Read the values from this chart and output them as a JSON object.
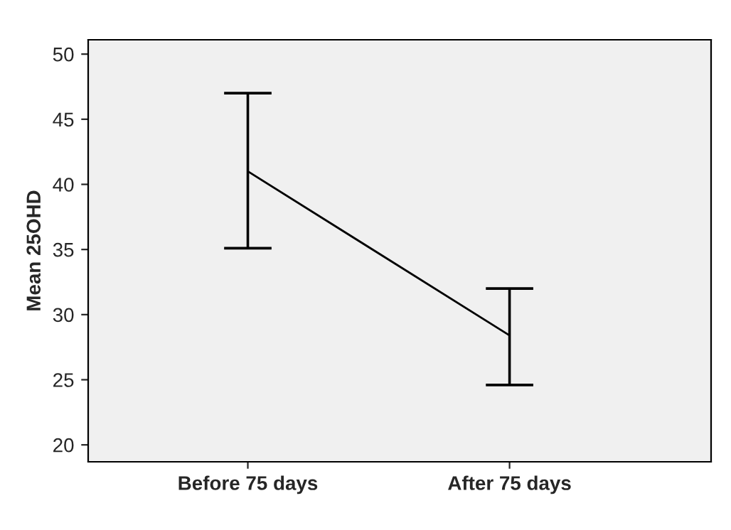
{
  "chart_data": {
    "type": "line",
    "ylabel": "Mean 25OHD",
    "categories": [
      "Before 75 days",
      "After 75 days"
    ],
    "series": [
      {
        "color": "#000000",
        "values": [
          41.0,
          28.4
        ],
        "errors": [
          [
            35.1,
            47.0
          ],
          [
            24.6,
            32.0
          ]
        ]
      }
    ],
    "ylim": [
      18.7,
      51.1
    ],
    "yticks": [
      20,
      25,
      30,
      35,
      40,
      45,
      50
    ],
    "grid": false,
    "legend": false,
    "marker": "none",
    "line_style": "solid"
  }
}
